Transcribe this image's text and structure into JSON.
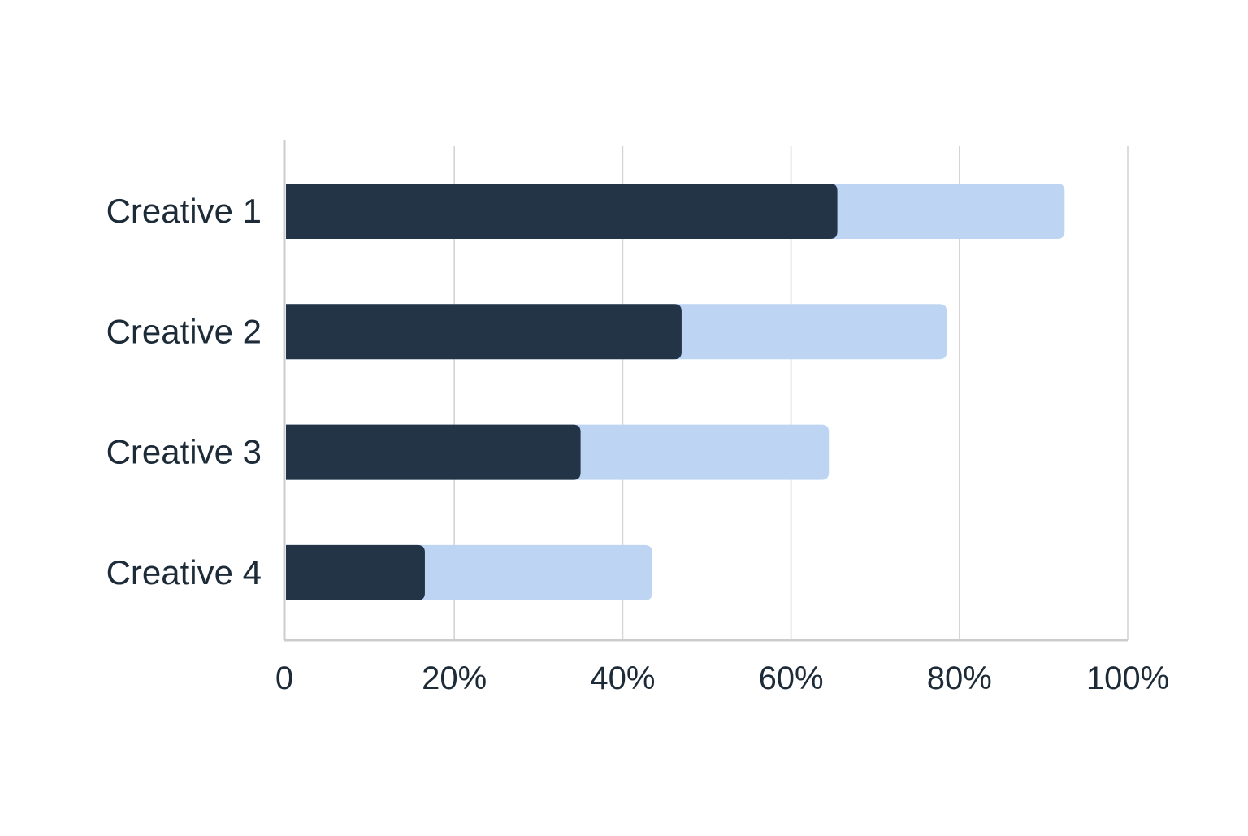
{
  "chart_data": {
    "type": "bar",
    "orientation": "horizontal",
    "stacked": false,
    "overlapped": true,
    "categories": [
      "Creative 1",
      "Creative 2",
      "Creative 3",
      "Creative 4"
    ],
    "series": [
      {
        "values": [
          92.5,
          78.5,
          64.5,
          43.5
        ]
      },
      {
        "values": [
          65.5,
          47,
          35,
          16.5
        ]
      }
    ],
    "xlim": [
      0,
      100
    ],
    "xticks": [
      0,
      20,
      40,
      60,
      80,
      100
    ],
    "xtick_labels": [
      "0",
      "20%",
      "40%",
      "60%",
      "80%",
      "100%"
    ],
    "title": "",
    "xlabel": "",
    "ylabel": "",
    "grid": "vertical",
    "legend": "none",
    "colors": {
      "background": "#ffffff",
      "series_light": "#bdd5f3",
      "series_dark": "#223445",
      "grid": "#d4d4d4",
      "axis": "#cccccc",
      "text": "#1d2b38"
    }
  }
}
